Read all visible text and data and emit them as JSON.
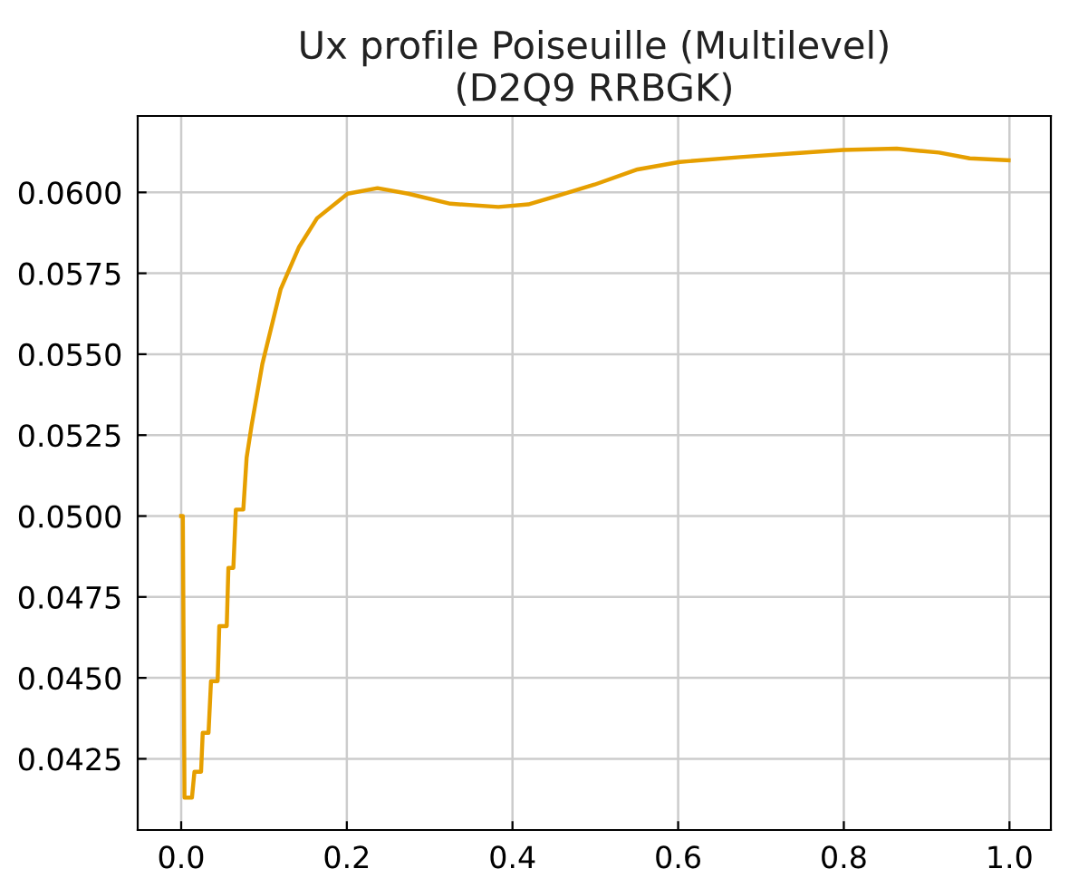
{
  "chart_data": {
    "type": "line",
    "title": "Ux profile Poiseuille (Multilevel)\n(D2Q9 RRBGK)",
    "x": [
      0,
      0.002,
      0.004,
      0.013,
      0.016,
      0.024,
      0.026,
      0.033,
      0.036,
      0.044,
      0.046,
      0.055,
      0.057,
      0.063,
      0.066,
      0.075,
      0.079,
      0.085,
      0.098,
      0.12,
      0.142,
      0.164,
      0.201,
      0.237,
      0.274,
      0.325,
      0.383,
      0.419,
      0.456,
      0.499,
      0.551,
      0.602,
      0.675,
      0.747,
      0.799,
      0.864,
      0.915,
      0.952,
      0.999
    ],
    "series": [
      {
        "color": "#e69f00",
        "values": [
          0.05,
          0.05,
          0.0413,
          0.0413,
          0.0421,
          0.0421,
          0.0433,
          0.0433,
          0.0449,
          0.0449,
          0.0466,
          0.0466,
          0.0484,
          0.0484,
          0.0502,
          0.0502,
          0.0518,
          0.0528,
          0.0547,
          0.057,
          0.0583,
          0.0592,
          0.05996,
          0.06013,
          0.05996,
          0.05965,
          0.05955,
          0.05963,
          0.05991,
          0.06024,
          0.06071,
          0.06094,
          0.06109,
          0.06122,
          0.06131,
          0.06135,
          0.06123,
          0.06105,
          0.06099
        ]
      }
    ],
    "xlim": [
      -0.0525,
      1.05
    ],
    "ylim": [
      0.0403,
      0.06236
    ],
    "xticks": [
      {
        "value": 0,
        "label": "0.0"
      },
      {
        "value": 0.2,
        "label": "0.2"
      },
      {
        "value": 0.4,
        "label": "0.4"
      },
      {
        "value": 0.6,
        "label": "0.6"
      },
      {
        "value": 0.8,
        "label": "0.8"
      },
      {
        "value": 1.0,
        "label": "1.0"
      }
    ],
    "yticks": [
      {
        "value": 0.0425,
        "label": "0.0425"
      },
      {
        "value": 0.045,
        "label": "0.0450"
      },
      {
        "value": 0.0475,
        "label": "0.0475"
      },
      {
        "value": 0.05,
        "label": "0.0500"
      },
      {
        "value": 0.0525,
        "label": "0.0525"
      },
      {
        "value": 0.055,
        "label": "0.0550"
      },
      {
        "value": 0.0575,
        "label": "0.0575"
      },
      {
        "value": 0.06,
        "label": "0.0600"
      }
    ],
    "grid": true
  }
}
